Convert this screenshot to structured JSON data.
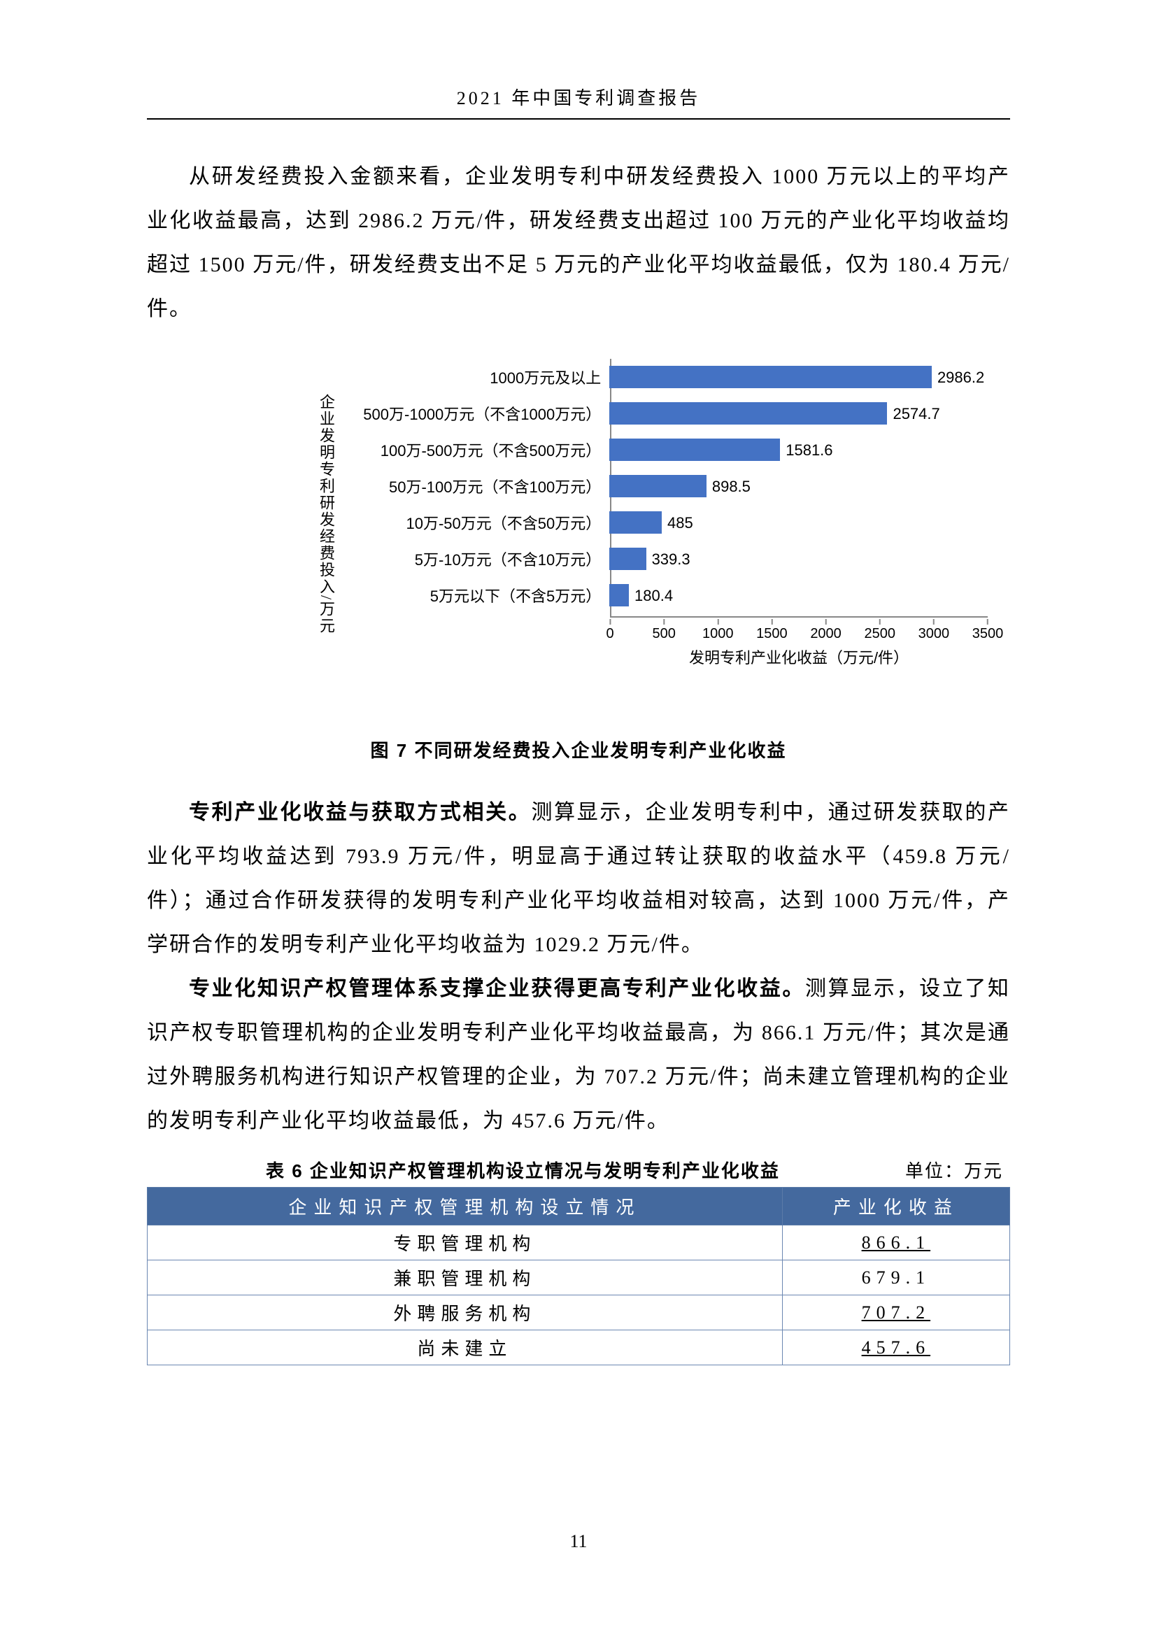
{
  "header": {
    "title": "2021 年中国专利调查报告"
  },
  "para1": "从研发经费投入金额来看，企业发明专利中研发经费投入 1000 万元以上的平均产业化收益最高，达到 2986.2 万元/件，研发经费支出超过 100 万元的产业化平均收益均超过 1500 万元/件，研发经费支出不足 5 万元的产业化平均收益最低，仅为 180.4 万元/件。",
  "chart": {
    "type": "horizontal-bar",
    "y_axis_title": "企业发明专利研发经费投入/万元",
    "x_axis_title": "发明专利产业化收益（万元/件）",
    "x_max": 3500,
    "x_ticks": [
      0,
      500,
      1000,
      1500,
      2000,
      2500,
      3000,
      3500
    ],
    "bar_color": "#4472c4",
    "axis_color": "#888888",
    "label_fontsize": 22,
    "value_fontsize": 22,
    "bars": [
      {
        "label": "1000万元及以上",
        "value": 2986.2
      },
      {
        "label": "500万-1000万元（不含1000万元）",
        "value": 2574.7
      },
      {
        "label": "100万-500万元（不含500万元）",
        "value": 1581.6
      },
      {
        "label": "50万-100万元（不含100万元）",
        "value": 898.5
      },
      {
        "label": "10万-50万元（不含50万元）",
        "value": 485
      },
      {
        "label": "5万-10万元（不含10万元）",
        "value": 339.3
      },
      {
        "label": "5万元以下（不含5万元）",
        "value": 180.4
      }
    ],
    "caption": "图 7  不同研发经费投入企业发明专利产业化收益"
  },
  "para2_bold": "专利产业化收益与获取方式相关。",
  "para2_rest": "测算显示，企业发明专利中，通过研发获取的产业化平均收益达到 793.9 万元/件，明显高于通过转让获取的收益水平（459.8 万元/件）；通过合作研发获得的发明专利产业化平均收益相对较高，达到 1000 万元/件，产学研合作的发明专利产业化平均收益为 1029.2 万元/件。",
  "para3_bold": "专业化知识产权管理体系支撑企业获得更高专利产业化收益。",
  "para3_rest": "测算显示，设立了知识产权专职管理机构的企业发明专利产业化平均收益最高，为 866.1 万元/件；其次是通过外聘服务机构进行知识产权管理的企业，为 707.2 万元/件；尚未建立管理机构的企业的发明专利产业化平均收益最低，为 457.6 万元/件。",
  "table": {
    "caption": "表 6  企业知识产权管理机构设立情况与发明专利产业化收益",
    "unit": "单位：万元",
    "header_bg": "#44699e",
    "border_color": "#6b87b1",
    "cell_fontsize": 26,
    "columns": [
      "企业知识产权管理机构设立情况",
      "产业化收益"
    ],
    "rows": [
      {
        "c0": "专职管理机构",
        "c1": "866.1",
        "u": true
      },
      {
        "c0": "兼职管理机构",
        "c1": "679.1",
        "u": false
      },
      {
        "c0": "外聘服务机构",
        "c1": "707.2",
        "u": true
      },
      {
        "c0": "尚未建立",
        "c1": "457.6",
        "u": true
      }
    ]
  },
  "page_number": "11"
}
